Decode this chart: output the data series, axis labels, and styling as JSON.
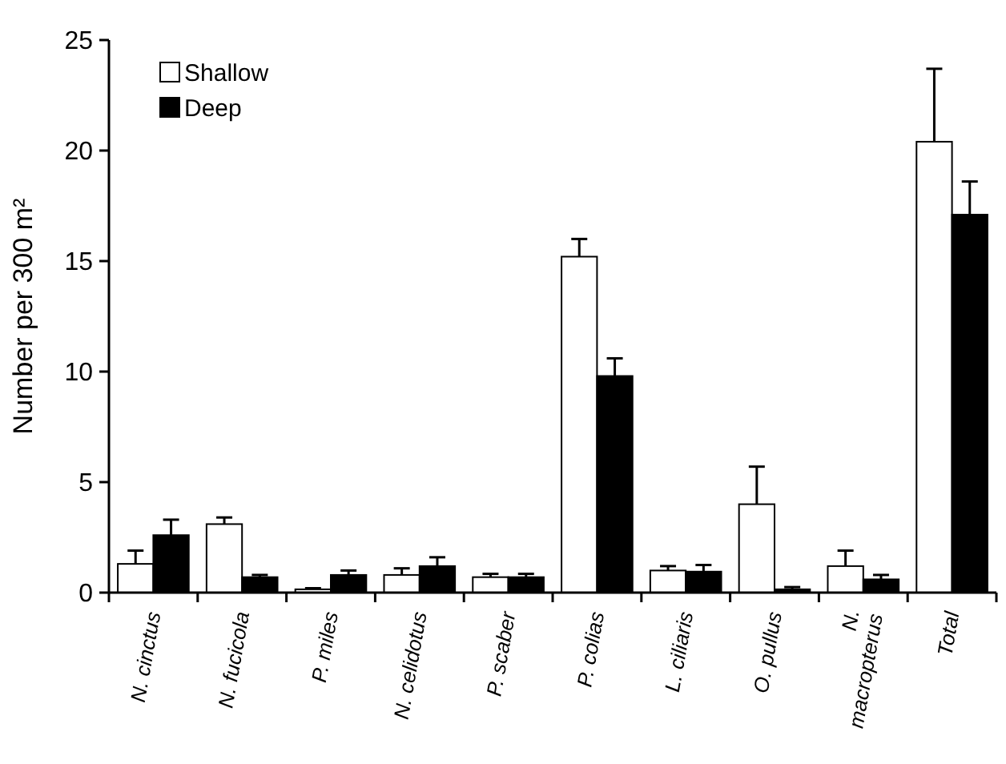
{
  "chart_data": {
    "type": "bar",
    "ylabel": "Number per 300 m²",
    "categories": [
      "N. cinctus",
      "N. fucicola",
      "P. miles",
      "N. celidotus",
      "P. scaber",
      "P. colias",
      "L. ciliaris",
      "O. pullus",
      "N. macropterus",
      "Total"
    ],
    "series": [
      {
        "name": "Shallow",
        "color": "#ffffff",
        "values": [
          1.3,
          3.1,
          0.15,
          0.8,
          0.7,
          15.2,
          1.0,
          4.0,
          1.2,
          20.4
        ],
        "errors": [
          0.6,
          0.3,
          0.05,
          0.3,
          0.15,
          0.8,
          0.2,
          1.7,
          0.7,
          3.3
        ]
      },
      {
        "name": "Deep",
        "color": "#000000",
        "values": [
          2.6,
          0.7,
          0.8,
          1.2,
          0.7,
          9.8,
          0.95,
          0.15,
          0.6,
          17.1
        ],
        "errors": [
          0.7,
          0.1,
          0.2,
          0.4,
          0.15,
          0.8,
          0.3,
          0.1,
          0.2,
          1.5
        ]
      }
    ],
    "ylim": [
      0,
      25
    ],
    "yticks": [
      0,
      5,
      10,
      15,
      20,
      25
    ],
    "grid": false,
    "legend": "top left"
  }
}
